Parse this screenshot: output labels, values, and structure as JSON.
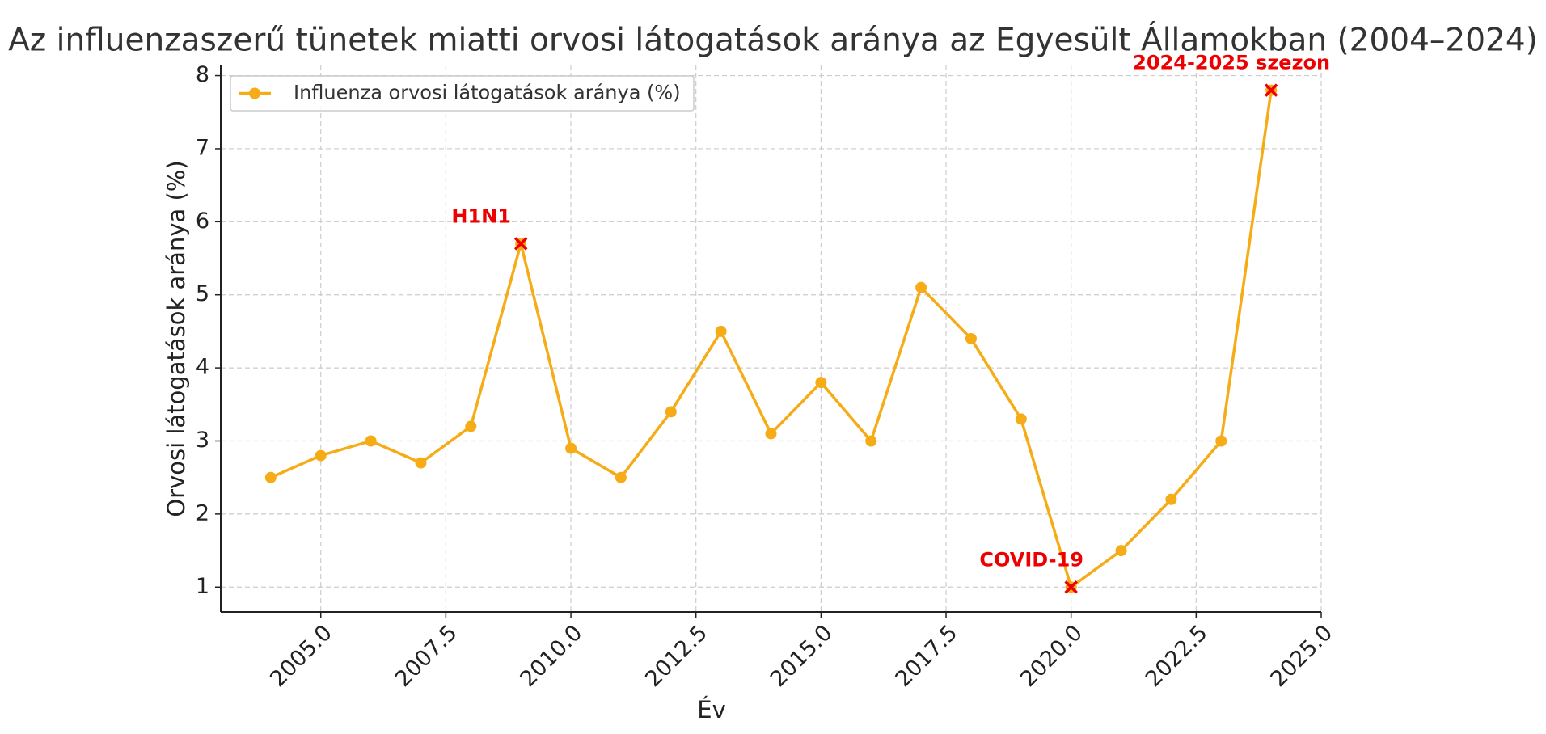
{
  "chart_data": {
    "type": "line",
    "title": "Az influenzaszerű tünetek miatti orvosi látogatások aránya az Egyesült Államokban (2004–2024)",
    "x_label": "Év",
    "y_label": "Orvosi látogatások aránya (%)",
    "x": [
      2004,
      2005,
      2006,
      2007,
      2008,
      2009,
      2010,
      2011,
      2012,
      2013,
      2014,
      2015,
      2016,
      2017,
      2018,
      2019,
      2020,
      2021,
      2022,
      2023,
      2024
    ],
    "series": [
      {
        "name": "Influenza orvosi látogatások aránya (%)",
        "color": "#f5ac17",
        "values": [
          2.5,
          2.8,
          3.0,
          2.7,
          3.2,
          5.7,
          2.9,
          2.5,
          3.4,
          4.5,
          3.1,
          3.8,
          3.0,
          5.1,
          4.4,
          3.3,
          1.0,
          1.5,
          2.2,
          3.0,
          7.8
        ]
      }
    ],
    "annotations": [
      {
        "text": "H1N1",
        "x": 2009,
        "y": 5.7
      },
      {
        "text": "COVID-19",
        "x": 2020,
        "y": 1.0
      },
      {
        "text": "2024-2025 szezon",
        "x": 2024,
        "y": 7.8
      }
    ],
    "annotation_color": "#ee0000",
    "xlim": [
      2003.0,
      2025.0
    ],
    "ylim": [
      0.66,
      8.15
    ],
    "xticks": [
      {
        "value": 2005,
        "label": "2005.0"
      },
      {
        "value": 2007.5,
        "label": "2007.5"
      },
      {
        "value": 2010,
        "label": "2010.0"
      },
      {
        "value": 2012.5,
        "label": "2012.5"
      },
      {
        "value": 2015,
        "label": "2015.0"
      },
      {
        "value": 2017.5,
        "label": "2017.5"
      },
      {
        "value": 2020,
        "label": "2020.0"
      },
      {
        "value": 2022.5,
        "label": "2022.5"
      },
      {
        "value": 2025,
        "label": "2025.0"
      }
    ],
    "yticks": [
      1,
      2,
      3,
      4,
      5,
      6,
      7,
      8
    ],
    "grid": true,
    "legend": "upper left"
  }
}
